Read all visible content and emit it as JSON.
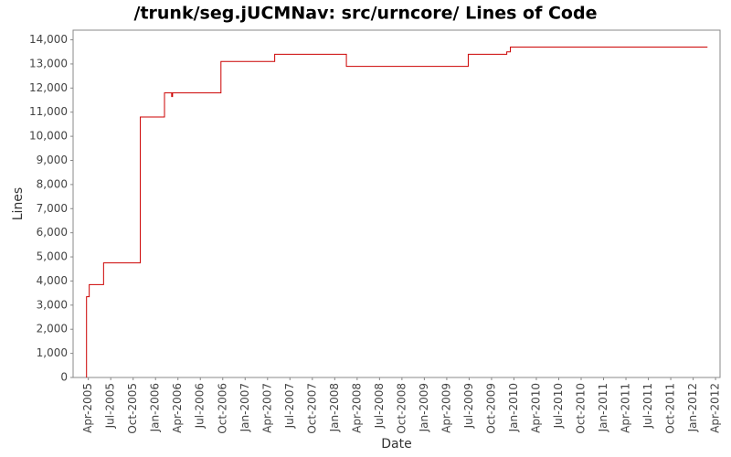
{
  "chart_data": {
    "type": "line",
    "title": "/trunk/seg.jUCMNav: src/urncore/ Lines of Code",
    "x_label": "Date",
    "y_label": "Lines",
    "series": [
      {
        "name": "Lines of Code",
        "color": "#cc0000",
        "x": [
          2005.23,
          2005.23,
          2005.26,
          2005.26,
          2005.42,
          2005.42,
          2005.83,
          2005.83,
          2006.1,
          2006.1,
          2006.18,
          2006.18,
          2006.19,
          2006.19,
          2006.73,
          2006.73,
          2007.33,
          2007.33,
          2008.13,
          2008.13,
          2009.49,
          2009.49,
          2009.92,
          2009.92,
          2009.96,
          2009.96,
          2012.16
        ],
        "values": [
          0,
          3350,
          3350,
          3850,
          3850,
          4750,
          4750,
          10800,
          10800,
          11800,
          11800,
          11650,
          11650,
          11800,
          11800,
          13100,
          13100,
          13400,
          13400,
          12900,
          12900,
          13400,
          13400,
          13500,
          13500,
          13700,
          13700
        ]
      }
    ],
    "xlim": [
      2005.08,
      2012.3
    ],
    "ylim": [
      0,
      14400
    ],
    "yticks": [
      0,
      {
        "value": 1000,
        "label": "1,000"
      },
      {
        "value": 2000,
        "label": "2,000"
      },
      {
        "value": 3000,
        "label": "3,000"
      },
      {
        "value": 4000,
        "label": "4,000"
      },
      {
        "value": 5000,
        "label": "5,000"
      },
      {
        "value": 6000,
        "label": "6,000"
      },
      {
        "value": 7000,
        "label": "7,000"
      },
      {
        "value": 8000,
        "label": "8,000"
      },
      {
        "value": 9000,
        "label": "9,000"
      },
      {
        "value": 10000,
        "label": "10,000"
      },
      {
        "value": 11000,
        "label": "11,000"
      },
      {
        "value": 12000,
        "label": "12,000"
      },
      {
        "value": 13000,
        "label": "13,000"
      },
      {
        "value": 14000,
        "label": "14,000"
      }
    ],
    "xticks": [
      {
        "value": 2005.25,
        "label": "Apr-2005"
      },
      {
        "value": 2005.5,
        "label": "Jul-2005"
      },
      {
        "value": 2005.75,
        "label": "Oct-2005"
      },
      {
        "value": 2006,
        "label": "Jan-2006"
      },
      {
        "value": 2006.25,
        "label": "Apr-2006"
      },
      {
        "value": 2006.5,
        "label": "Jul-2006"
      },
      {
        "value": 2006.75,
        "label": "Oct-2006"
      },
      {
        "value": 2007,
        "label": "Jan-2007"
      },
      {
        "value": 2007.25,
        "label": "Apr-2007"
      },
      {
        "value": 2007.5,
        "label": "Jul-2007"
      },
      {
        "value": 2007.75,
        "label": "Oct-2007"
      },
      {
        "value": 2008,
        "label": "Jan-2008"
      },
      {
        "value": 2008.25,
        "label": "Apr-2008"
      },
      {
        "value": 2008.5,
        "label": "Jul-2008"
      },
      {
        "value": 2008.75,
        "label": "Oct-2008"
      },
      {
        "value": 2009,
        "label": "Jan-2009"
      },
      {
        "value": 2009.25,
        "label": "Apr-2009"
      },
      {
        "value": 2009.5,
        "label": "Jul-2009"
      },
      {
        "value": 2009.75,
        "label": "Oct-2009"
      },
      {
        "value": 2010,
        "label": "Jan-2010"
      },
      {
        "value": 2010.25,
        "label": "Apr-2010"
      },
      {
        "value": 2010.5,
        "label": "Jul-2010"
      },
      {
        "value": 2010.75,
        "label": "Oct-2010"
      },
      {
        "value": 2011,
        "label": "Jan-2011"
      },
      {
        "value": 2011.25,
        "label": "Apr-2011"
      },
      {
        "value": 2011.5,
        "label": "Jul-2011"
      },
      {
        "value": 2011.75,
        "label": "Oct-2011"
      },
      {
        "value": 2012,
        "label": "Jan-2012"
      },
      {
        "value": 2012.25,
        "label": "Apr-2012"
      }
    ],
    "grid": false
  }
}
